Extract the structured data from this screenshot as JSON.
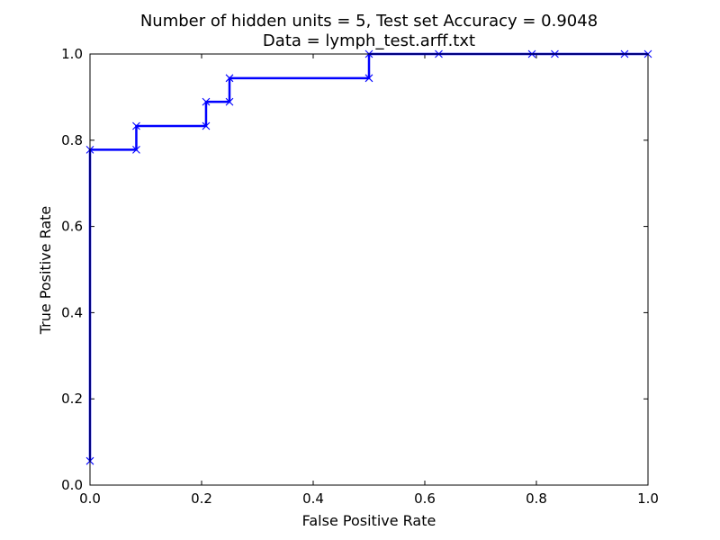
{
  "chart_data": {
    "type": "line",
    "title": "Number of hidden units = 5, Test set Accuracy = 0.9048",
    "subtitle": "Data = lymph_test.arff.txt",
    "xlabel": "False Positive Rate",
    "ylabel": "True Positive Rate",
    "xlim": [
      0.0,
      1.0
    ],
    "ylim": [
      0.0,
      1.0
    ],
    "xticks": [
      "0.0",
      "0.2",
      "0.4",
      "0.6",
      "0.8",
      "1.0"
    ],
    "yticks": [
      "0.0",
      "0.2",
      "0.4",
      "0.6",
      "0.8",
      "1.0"
    ],
    "grid": false,
    "line_style": "step",
    "color": "#0000ff",
    "marker": "x",
    "series": [
      {
        "x": [
          0.0,
          0.0,
          0.083,
          0.083,
          0.208,
          0.208,
          0.25,
          0.25,
          0.5,
          0.5,
          0.625,
          0.792,
          0.833,
          0.958,
          1.0
        ],
        "y": [
          0.056,
          0.778,
          0.778,
          0.833,
          0.833,
          0.889,
          0.889,
          0.944,
          0.944,
          1.0,
          1.0,
          1.0,
          1.0,
          1.0,
          1.0
        ]
      }
    ]
  }
}
